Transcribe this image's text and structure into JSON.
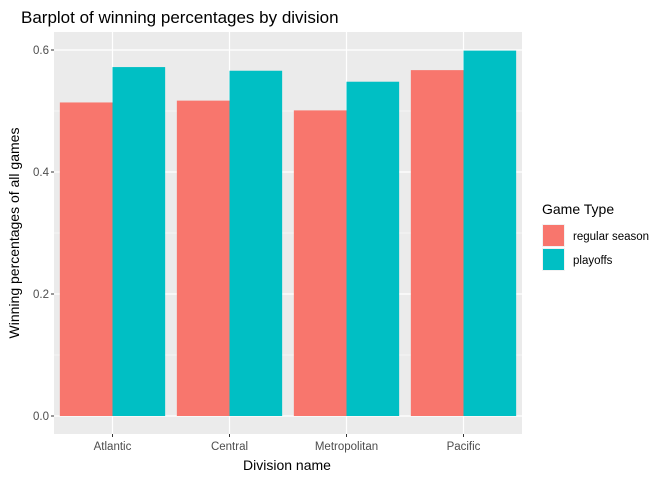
{
  "chart_data": {
    "type": "bar",
    "title": "Barplot of winning percentages by division",
    "xlabel": "Division name",
    "ylabel": "Winning percentages of all games",
    "categories": [
      "Atlantic",
      "Central",
      "Metropolitan",
      "Pacific"
    ],
    "series": [
      {
        "name": "regular season",
        "color": "#F8766D",
        "values": [
          0.514,
          0.517,
          0.501,
          0.567
        ]
      },
      {
        "name": "playoffs",
        "color": "#00BFC4",
        "values": [
          0.572,
          0.566,
          0.548,
          0.599
        ]
      }
    ],
    "ylim": [
      0,
      0.6
    ],
    "yticks": [
      "0.0",
      "0.2",
      "0.4",
      "0.6"
    ],
    "legend": {
      "title": "Game Type",
      "position": "right"
    },
    "grid": true
  }
}
